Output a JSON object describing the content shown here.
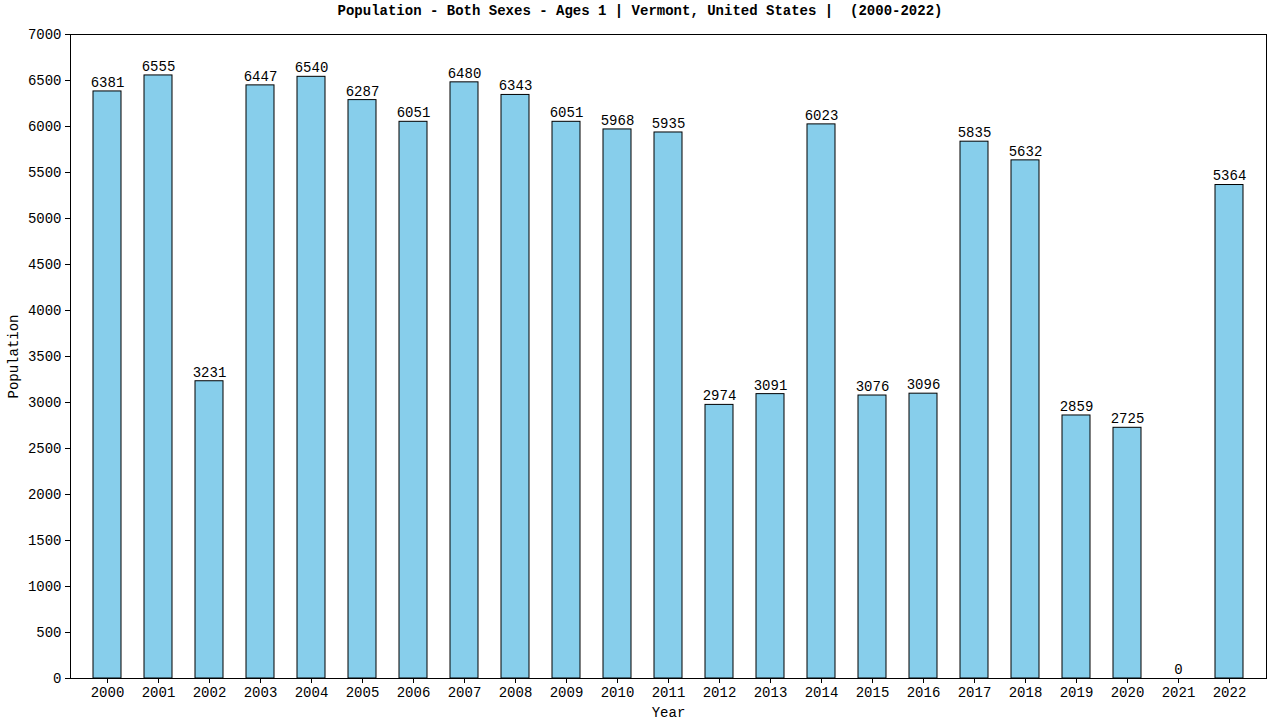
{
  "chart_data": {
    "type": "bar",
    "title": "Population - Both Sexes - Ages 1 | Vermont, United States |  (2000-2022)",
    "x_label": "Year",
    "y_label": "Population",
    "categories": [
      "2000",
      "2001",
      "2002",
      "2003",
      "2004",
      "2005",
      "2006",
      "2007",
      "2008",
      "2009",
      "2010",
      "2011",
      "2012",
      "2013",
      "2014",
      "2015",
      "2016",
      "2017",
      "2018",
      "2019",
      "2020",
      "2021",
      "2022"
    ],
    "values": [
      6381,
      6555,
      3231,
      6447,
      6540,
      6287,
      6051,
      6480,
      6343,
      6051,
      5968,
      5935,
      2974,
      3091,
      6023,
      3076,
      3096,
      5835,
      5632,
      2859,
      2725,
      0,
      5364
    ],
    "color": "#87ceeb",
    "ylim": [
      0,
      7000
    ],
    "yticks": [
      0,
      500,
      1000,
      1500,
      2000,
      2500,
      3000,
      3500,
      4000,
      4500,
      5000,
      5500,
      6000,
      6500,
      7000
    ],
    "grid": false,
    "data_labels": true
  }
}
